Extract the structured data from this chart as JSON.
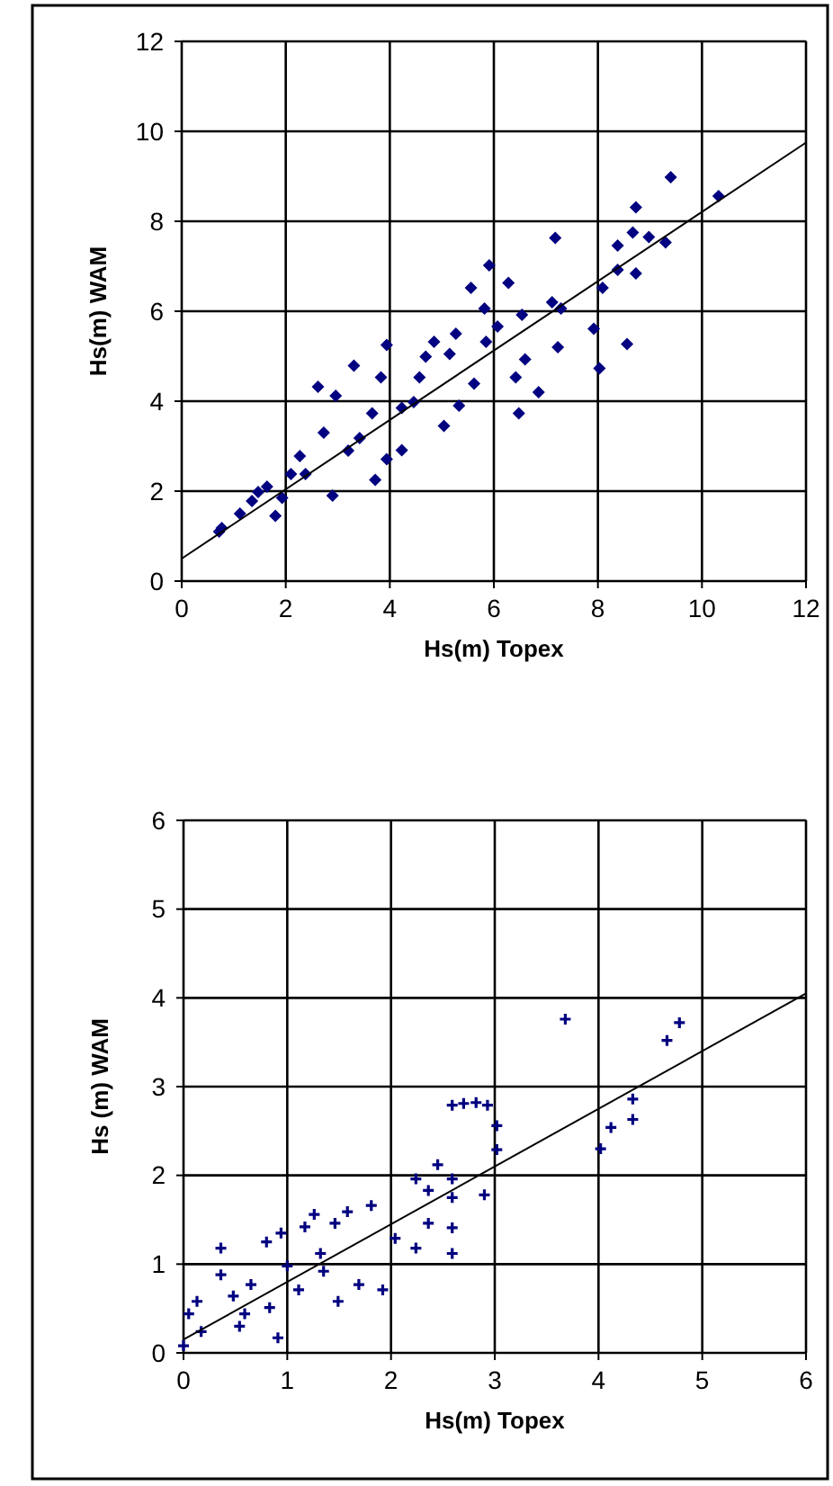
{
  "chart_data": [
    {
      "type": "scatter",
      "xlabel": "Hs(m) Topex",
      "ylabel": "Hs(m) WAM",
      "xlim": [
        0,
        12
      ],
      "ylim": [
        0,
        12
      ],
      "xticks": [
        0,
        2,
        4,
        6,
        8,
        10,
        12
      ],
      "yticks": [
        0,
        2,
        4,
        6,
        8,
        10,
        12
      ],
      "grid": true,
      "marker": "diamond",
      "series": [
        {
          "color": "#000080",
          "x": [
            0.72,
            1.12,
            1.35,
            1.64,
            1.93,
            1.8,
            2.1,
            2.27,
            2.73,
            2.62,
            2.96,
            2.9,
            3.31,
            3.2,
            3.72,
            3.66,
            3.83,
            3.94,
            3.94,
            4.23,
            4.23,
            4.57,
            4.69,
            4.85,
            5.04,
            5.27,
            5.33,
            5.56,
            5.62,
            5.85,
            5.91,
            5.82,
            6.07,
            6.28,
            6.42,
            6.48,
            6.54,
            6.6,
            6.86,
            7.12,
            7.18,
            7.23,
            7.29,
            7.92,
            8.03,
            8.09,
            8.38,
            8.56,
            8.38,
            8.67,
            8.73,
            8.73,
            8.98,
            9.3,
            9.4,
            10.32,
            0.77,
            1.47,
            2.38,
            3.42,
            4.46,
            5.15
          ],
          "values": [
            1.1,
            1.5,
            1.78,
            2.1,
            1.85,
            1.45,
            2.38,
            2.78,
            3.3,
            4.32,
            4.12,
            1.9,
            4.79,
            2.9,
            2.25,
            3.73,
            4.53,
            5.25,
            2.71,
            2.91,
            3.85,
            4.53,
            4.99,
            5.32,
            3.45,
            5.5,
            3.9,
            6.52,
            4.39,
            5.32,
            7.02,
            6.06,
            5.66,
            6.63,
            4.53,
            3.73,
            5.92,
            4.93,
            4.2,
            6.2,
            7.63,
            5.2,
            6.06,
            5.61,
            4.73,
            6.52,
            6.92,
            5.27,
            7.46,
            7.75,
            6.84,
            8.31,
            7.65,
            7.53,
            8.98,
            8.56,
            1.18,
            1.98,
            2.38,
            3.18,
            3.98,
            5.05
          ]
        },
        {
          "type": "line",
          "color": "#000000",
          "marker": "none",
          "x": [
            0,
            12
          ],
          "values": [
            0.5,
            9.75
          ]
        }
      ]
    },
    {
      "type": "scatter",
      "xlabel": "Hs(m) Topex",
      "ylabel": "Hs (m) WAM",
      "xlim": [
        0,
        6
      ],
      "ylim": [
        0,
        6
      ],
      "xticks": [
        0,
        1,
        2,
        3,
        4,
        5,
        6
      ],
      "yticks": [
        0,
        1,
        2,
        3,
        4,
        5,
        6
      ],
      "grid": true,
      "marker": "cross",
      "series": [
        {
          "color": "#000080",
          "x": [
            0,
            0.05,
            0.17,
            0.36,
            0.36,
            0.48,
            0.54,
            0.65,
            0.8,
            0.83,
            0.91,
            0.94,
            1.0,
            1.11,
            1.17,
            1.26,
            1.32,
            1.46,
            1.49,
            1.58,
            1.69,
            1.81,
            1.92,
            2.04,
            2.24,
            2.24,
            2.36,
            2.36,
            2.45,
            2.59,
            2.59,
            2.59,
            2.59,
            2.59,
            2.7,
            2.82,
            2.93,
            2.9,
            3.02,
            3.02,
            3.68,
            4.02,
            4.12,
            4.33,
            4.33,
            4.66,
            4.78,
            0.13,
            0.59,
            1.35
          ],
          "values": [
            0.08,
            0.44,
            0.24,
            1.18,
            0.88,
            0.64,
            0.3,
            0.77,
            1.25,
            0.51,
            0.17,
            1.35,
            0.98,
            0.71,
            1.42,
            1.56,
            1.12,
            1.46,
            0.58,
            1.59,
            0.77,
            1.66,
            0.71,
            1.29,
            1.96,
            1.18,
            1.83,
            1.46,
            2.12,
            1.12,
            1.41,
            1.96,
            1.75,
            2.79,
            2.81,
            2.82,
            2.79,
            1.78,
            2.56,
            2.29,
            3.76,
            2.3,
            2.54,
            2.86,
            2.63,
            3.52,
            3.72,
            0.58,
            0.44,
            0.92
          ]
        },
        {
          "type": "line",
          "color": "#000000",
          "marker": "none",
          "x": [
            0,
            6
          ],
          "values": [
            0.15,
            4.05
          ]
        }
      ]
    }
  ]
}
